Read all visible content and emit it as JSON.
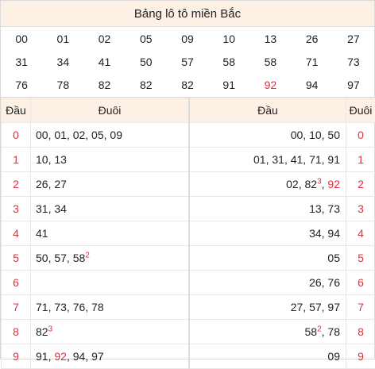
{
  "title": "Bảng lô tô miền Bắc",
  "numbers": [
    {
      "v": "00",
      "red": false
    },
    {
      "v": "01",
      "red": false
    },
    {
      "v": "02",
      "red": false
    },
    {
      "v": "05",
      "red": false
    },
    {
      "v": "09",
      "red": false
    },
    {
      "v": "10",
      "red": false
    },
    {
      "v": "13",
      "red": false
    },
    {
      "v": "26",
      "red": false
    },
    {
      "v": "27",
      "red": false
    },
    {
      "v": "31",
      "red": false
    },
    {
      "v": "34",
      "red": false
    },
    {
      "v": "41",
      "red": false
    },
    {
      "v": "50",
      "red": false
    },
    {
      "v": "57",
      "red": false
    },
    {
      "v": "58",
      "red": false
    },
    {
      "v": "58",
      "red": false
    },
    {
      "v": "71",
      "red": false
    },
    {
      "v": "73",
      "red": false
    },
    {
      "v": "76",
      "red": false
    },
    {
      "v": "78",
      "red": false
    },
    {
      "v": "82",
      "red": false
    },
    {
      "v": "82",
      "red": false
    },
    {
      "v": "82",
      "red": false
    },
    {
      "v": "91",
      "red": false
    },
    {
      "v": "92",
      "red": true
    },
    {
      "v": "94",
      "red": false
    },
    {
      "v": "97",
      "red": false
    }
  ],
  "headers": {
    "dau_left": "Đầu",
    "duoi_left": "Đuôi",
    "dau_right": "Đầu",
    "duoi_right": "Đuôi"
  },
  "rows": [
    {
      "head": "0",
      "tail": [
        {
          "t": "00, 01, 02, 05, 09"
        }
      ],
      "rtail": [
        {
          "t": "00, 10, 50"
        }
      ]
    },
    {
      "head": "1",
      "tail": [
        {
          "t": "10, 13"
        }
      ],
      "rtail": [
        {
          "t": "01, 31, 41, 71, 91"
        }
      ]
    },
    {
      "head": "2",
      "tail": [
        {
          "t": "26, 27"
        }
      ],
      "rtail": [
        {
          "t": "02, 82"
        },
        {
          "t": "3",
          "sup": true
        },
        {
          "t": ", "
        },
        {
          "t": "92",
          "red": true
        }
      ]
    },
    {
      "head": "3",
      "tail": [
        {
          "t": "31, 34"
        }
      ],
      "rtail": [
        {
          "t": "13, 73"
        }
      ]
    },
    {
      "head": "4",
      "tail": [
        {
          "t": "41"
        }
      ],
      "rtail": [
        {
          "t": "34, 94"
        }
      ]
    },
    {
      "head": "5",
      "tail": [
        {
          "t": "50, 57, 58"
        },
        {
          "t": "2",
          "sup": true
        }
      ],
      "rtail": [
        {
          "t": "05"
        }
      ]
    },
    {
      "head": "6",
      "tail": [],
      "rtail": [
        {
          "t": "26, 76"
        }
      ]
    },
    {
      "head": "7",
      "tail": [
        {
          "t": "71, 73, 76, 78"
        }
      ],
      "rtail": [
        {
          "t": "27, 57, 97"
        }
      ]
    },
    {
      "head": "8",
      "tail": [
        {
          "t": "82"
        },
        {
          "t": "3",
          "sup": true
        }
      ],
      "rtail": [
        {
          "t": "58"
        },
        {
          "t": "2",
          "sup": true
        },
        {
          "t": ", 78"
        }
      ]
    },
    {
      "head": "9",
      "tail": [
        {
          "t": "91, "
        },
        {
          "t": "92",
          "red": true
        },
        {
          "t": ", 94, 97"
        }
      ],
      "rtail": [
        {
          "t": "09"
        }
      ]
    }
  ]
}
